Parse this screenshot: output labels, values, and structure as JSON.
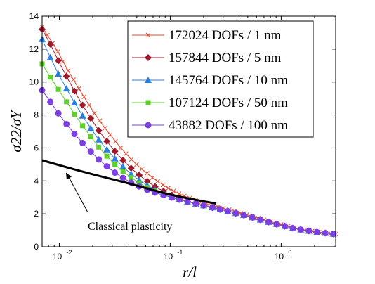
{
  "chart_data": {
    "type": "line",
    "xlabel": "r/l",
    "ylabel": "σ22/σY",
    "xscale": "log",
    "xlim": [
      0.007,
      3.1
    ],
    "ylim": [
      0,
      14
    ],
    "x_ticks": [
      {
        "value": 0.01,
        "base": "10",
        "exp": "-2"
      },
      {
        "value": 0.1,
        "base": "10",
        "exp": "-1"
      },
      {
        "value": 1,
        "base": "10",
        "exp": "0"
      }
    ],
    "y_ticks": [
      0,
      2,
      4,
      6,
      8,
      10,
      12,
      14
    ],
    "grid": false,
    "legend_position": "top-right",
    "series": [
      {
        "name": "172024 DOFs / 1 nm",
        "color": "#e8492d",
        "marker": "x",
        "x": [
          0.007,
          0.0078,
          0.0087,
          0.0097,
          0.0108,
          0.012,
          0.0134,
          0.015,
          0.0167,
          0.0186,
          0.0207,
          0.0231,
          0.0258,
          0.0288,
          0.0321,
          0.0358,
          0.0399,
          0.0445,
          0.0497,
          0.0554,
          0.0618,
          0.069,
          0.077,
          0.086,
          0.096,
          0.107,
          0.12,
          0.134,
          0.15,
          0.17,
          0.19,
          0.21,
          0.24,
          0.27,
          0.3,
          0.34,
          0.38,
          0.43,
          0.49,
          0.55,
          0.62,
          0.7,
          0.8,
          0.9,
          1.0,
          1.15,
          1.3,
          1.5,
          1.7,
          1.9,
          2.2,
          2.5,
          2.8,
          3.1
        ],
        "y": [
          13.35,
          12.85,
          12.35,
          11.85,
          11.25,
          10.7,
          10.15,
          9.6,
          9.1,
          8.6,
          8.1,
          7.65,
          7.2,
          6.8,
          6.4,
          6.0,
          5.65,
          5.3,
          5.0,
          4.72,
          4.46,
          4.2,
          3.97,
          3.76,
          3.56,
          3.38,
          3.22,
          3.08,
          2.95,
          2.83,
          2.72,
          2.62,
          2.52,
          2.43,
          2.34,
          2.25,
          2.15,
          2.05,
          1.95,
          1.85,
          1.74,
          1.63,
          1.53,
          1.44,
          1.35,
          1.25,
          1.16,
          1.07,
          1.0,
          0.95,
          0.88,
          0.83,
          0.8,
          0.77
        ]
      },
      {
        "name": "157844 DOFs / 5 nm",
        "color": "#a0192a",
        "marker": "diamond",
        "x": [
          0.007,
          0.0083,
          0.0098,
          0.0116,
          0.0137,
          0.0162,
          0.0192,
          0.0227,
          0.0268,
          0.0317,
          0.0375,
          0.0444,
          0.0525,
          0.062,
          0.073,
          0.087,
          0.103,
          0.121,
          0.143,
          0.17,
          0.2,
          0.24,
          0.28,
          0.33,
          0.39,
          0.46,
          0.55,
          0.65,
          0.77,
          0.91,
          1.08,
          1.27,
          1.5,
          1.78,
          2.1,
          2.5,
          2.95
        ],
        "y": [
          13.2,
          12.3,
          11.3,
          10.35,
          9.45,
          8.6,
          7.8,
          7.05,
          6.4,
          5.8,
          5.25,
          4.77,
          4.35,
          3.98,
          3.65,
          3.37,
          3.13,
          2.93,
          2.76,
          2.62,
          2.5,
          2.38,
          2.27,
          2.16,
          2.04,
          1.92,
          1.78,
          1.64,
          1.5,
          1.37,
          1.25,
          1.13,
          1.04,
          0.96,
          0.89,
          0.83,
          0.78
        ]
      },
      {
        "name": "145764 DOFs / 10 nm",
        "color": "#2b7fe0",
        "marker": "triangle",
        "x": [
          0.007,
          0.0083,
          0.0098,
          0.0116,
          0.0137,
          0.0162,
          0.0192,
          0.0227,
          0.0268,
          0.0317,
          0.0375,
          0.0444,
          0.0525,
          0.062,
          0.073,
          0.087,
          0.103,
          0.121,
          0.143,
          0.17,
          0.2,
          0.24,
          0.28,
          0.33,
          0.39,
          0.46,
          0.55,
          0.65,
          0.77,
          0.91,
          1.08,
          1.27,
          1.5,
          1.78,
          2.1,
          2.5,
          2.95
        ],
        "y": [
          12.6,
          11.5,
          10.5,
          9.6,
          8.75,
          7.95,
          7.2,
          6.5,
          5.9,
          5.35,
          4.85,
          4.42,
          4.05,
          3.73,
          3.45,
          3.22,
          3.03,
          2.87,
          2.73,
          2.61,
          2.5,
          2.38,
          2.27,
          2.16,
          2.04,
          1.92,
          1.78,
          1.64,
          1.5,
          1.37,
          1.25,
          1.13,
          1.04,
          0.96,
          0.89,
          0.83,
          0.78
        ]
      },
      {
        "name": "107124 DOFs / 50 nm",
        "color": "#5ed02a",
        "marker": "square",
        "x": [
          0.007,
          0.0083,
          0.0098,
          0.0116,
          0.0137,
          0.0162,
          0.0192,
          0.0227,
          0.0268,
          0.0317,
          0.0375,
          0.0444,
          0.0525,
          0.062,
          0.073,
          0.087,
          0.103,
          0.121,
          0.143,
          0.17,
          0.2,
          0.24,
          0.28,
          0.33,
          0.39,
          0.46,
          0.55,
          0.65,
          0.77,
          0.91,
          1.08,
          1.27,
          1.5,
          1.78,
          2.1,
          2.5,
          2.95
        ],
        "y": [
          11.1,
          10.3,
          9.55,
          8.8,
          8.05,
          7.35,
          6.68,
          6.05,
          5.5,
          5.0,
          4.58,
          4.2,
          3.87,
          3.6,
          3.38,
          3.18,
          3.01,
          2.86,
          2.73,
          2.61,
          2.5,
          2.38,
          2.27,
          2.16,
          2.04,
          1.92,
          1.78,
          1.64,
          1.5,
          1.37,
          1.25,
          1.13,
          1.04,
          0.96,
          0.89,
          0.83,
          0.78
        ]
      },
      {
        "name": "43882 DOFs / 100 nm",
        "color": "#7b3fe4",
        "marker": "circle",
        "x": [
          0.007,
          0.0083,
          0.0098,
          0.0116,
          0.0137,
          0.0162,
          0.0192,
          0.0227,
          0.0268,
          0.0317,
          0.0375,
          0.0444,
          0.0525,
          0.062,
          0.073,
          0.087,
          0.103,
          0.121,
          0.143,
          0.17,
          0.2,
          0.24,
          0.28,
          0.33,
          0.39,
          0.46,
          0.55,
          0.65,
          0.77,
          0.91,
          1.08,
          1.27,
          1.5,
          1.78,
          2.1,
          2.5,
          2.95
        ],
        "y": [
          9.5,
          8.8,
          8.1,
          7.45,
          6.85,
          6.3,
          5.78,
          5.3,
          4.88,
          4.5,
          4.18,
          3.9,
          3.66,
          3.46,
          3.29,
          3.13,
          2.99,
          2.86,
          2.74,
          2.62,
          2.51,
          2.39,
          2.28,
          2.16,
          2.04,
          1.92,
          1.78,
          1.64,
          1.5,
          1.37,
          1.25,
          1.13,
          1.04,
          0.96,
          0.89,
          0.83,
          0.78
        ]
      },
      {
        "name": "Classical plasticity",
        "color": "#000000",
        "marker": "none",
        "x": [
          0.007,
          0.01,
          0.014,
          0.02,
          0.03,
          0.045,
          0.065,
          0.09,
          0.12,
          0.16,
          0.2,
          0.26
        ],
        "y": [
          5.25,
          4.95,
          4.68,
          4.4,
          4.1,
          3.8,
          3.5,
          3.25,
          3.05,
          2.88,
          2.76,
          2.62
        ]
      }
    ],
    "annotation": {
      "text": "Classical plasticity",
      "arrow_target": {
        "x": 0.0115,
        "y": 4.5
      }
    }
  }
}
